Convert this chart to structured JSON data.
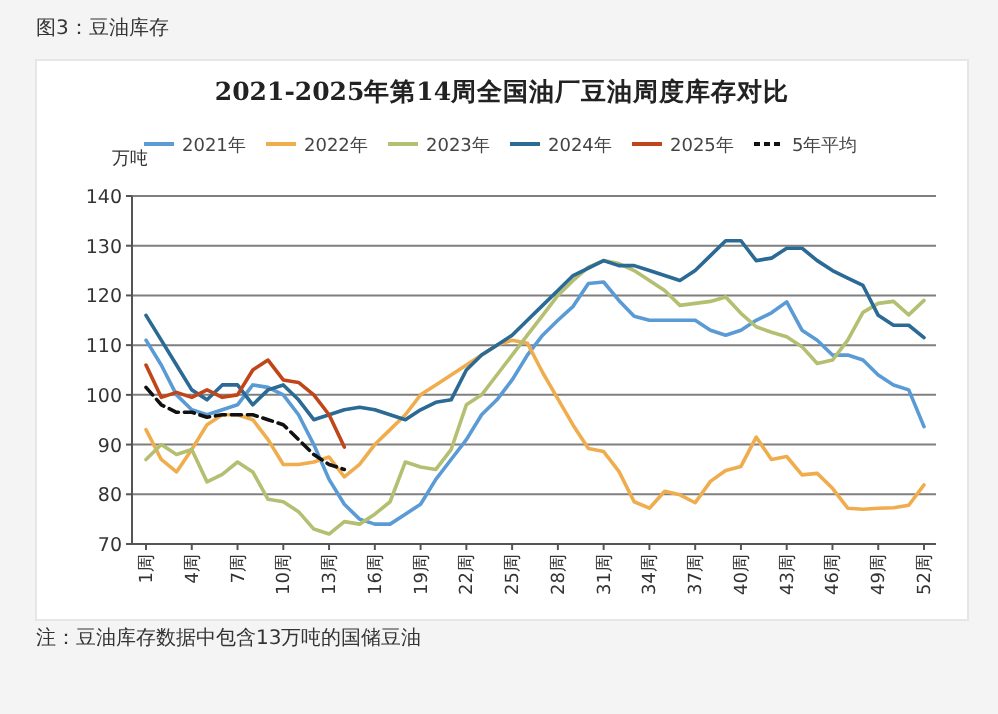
{
  "chart_data": {
    "type": "line",
    "title": "2021-2025年第14周全国油厂豆油周度库存对比",
    "ylabel": "万吨",
    "annotations": [
      "图3：豆油库存",
      "注：豆油库存数据中包含13万吨的国储豆油"
    ],
    "categories": [
      "1周",
      null,
      null,
      "4周",
      null,
      null,
      "7周",
      null,
      null,
      "10周",
      null,
      null,
      "13周",
      null,
      null,
      "16周",
      null,
      null,
      "19周",
      null,
      null,
      "22周",
      null,
      null,
      "25周",
      null,
      null,
      "28周",
      null,
      null,
      "31周",
      null,
      null,
      "34周",
      null,
      null,
      "37周",
      null,
      null,
      "40周",
      null,
      null,
      "43周",
      null,
      null,
      "46周",
      null,
      null,
      "49周",
      null,
      null,
      "52周"
    ],
    "ylim": [
      70,
      140
    ],
    "yticks": [
      70,
      80,
      90,
      100,
      110,
      120,
      130,
      140
    ],
    "grid": "y",
    "legend": "top",
    "series": [
      {
        "name": "2021年",
        "color": "#5b9bd5",
        "values": [
          111,
          106,
          100,
          97,
          96,
          97,
          98,
          102,
          101.5,
          100,
          96,
          90,
          83,
          78,
          75,
          74,
          74,
          76,
          78,
          83,
          87,
          91,
          96,
          99,
          103,
          108,
          112,
          115,
          117.8,
          122.4,
          122.7,
          119,
          115.8,
          115,
          115,
          115,
          115,
          113,
          112,
          113,
          115,
          116.5,
          118.7,
          113,
          111,
          108,
          108,
          107,
          104,
          102,
          101,
          93.6
        ]
      },
      {
        "name": "2022年",
        "color": "#f0ad4e",
        "values": [
          93,
          87,
          84.5,
          89,
          94,
          96,
          96,
          95,
          91,
          86,
          86,
          86.5,
          87.5,
          83.5,
          86,
          90,
          93,
          96,
          100,
          102,
          104,
          106,
          108,
          110,
          111,
          110.4,
          104.5,
          99.2,
          93.9,
          89.2,
          88.6,
          84.6,
          78.5,
          77.2,
          80.6,
          79.9,
          78.3,
          82.6,
          84.8,
          85.6,
          91.5,
          87,
          87.6,
          83.9,
          84.2,
          81.2,
          77.2,
          77,
          77.2,
          77.3,
          77.8,
          81.9
        ]
      },
      {
        "name": "2023年",
        "color": "#b4bf72",
        "values": [
          87,
          90,
          88,
          89,
          82.5,
          84,
          86.5,
          84.5,
          79,
          78.5,
          76.5,
          73,
          72,
          74.5,
          74,
          76,
          78.5,
          86.5,
          85.5,
          85,
          89,
          98,
          100,
          104,
          108,
          112,
          116,
          120,
          123,
          125.7,
          127,
          126.4,
          125,
          123,
          121,
          118,
          118.4,
          118.8,
          119.7,
          116.4,
          113.7,
          112.6,
          111.7,
          109.7,
          106.3,
          107,
          111,
          116.6,
          118.4,
          118.8,
          116.1,
          119
        ]
      },
      {
        "name": "2024年",
        "color": "#2a6a94",
        "values": [
          116,
          111,
          106,
          101,
          99,
          102,
          102,
          98,
          101,
          102,
          99,
          95,
          96,
          97,
          97.5,
          97,
          96,
          95,
          97,
          98.5,
          99,
          105,
          108,
          110,
          112,
          115,
          118,
          121,
          124,
          125.5,
          127,
          126,
          126,
          125,
          124,
          123,
          125,
          128,
          131,
          131,
          127,
          127.5,
          129.5,
          129.5,
          127,
          125,
          123.5,
          122,
          116,
          114,
          114,
          111.5
        ]
      },
      {
        "name": "2025年",
        "color": "#c0461a",
        "values": [
          106,
          99.5,
          100.5,
          99.5,
          101,
          99.5,
          100,
          105,
          107,
          103,
          102.5,
          100,
          96,
          89.5,
          null,
          null,
          null,
          null,
          null,
          null,
          null,
          null,
          null,
          null,
          null,
          null,
          null,
          null,
          null,
          null,
          null,
          null,
          null,
          null,
          null,
          null,
          null,
          null,
          null,
          null,
          null,
          null,
          null,
          null,
          null,
          null,
          null,
          null,
          null,
          null,
          null,
          null
        ]
      },
      {
        "name": "5年平均",
        "color": "#111111",
        "line_style": "dashed",
        "values": [
          101.5,
          98,
          96.5,
          96.5,
          95.5,
          96,
          96,
          96,
          95,
          94,
          91,
          88,
          86,
          85,
          null,
          null,
          null,
          null,
          null,
          null,
          null,
          null,
          null,
          null,
          null,
          null,
          null,
          null,
          null,
          null,
          null,
          null,
          null,
          null,
          null,
          null,
          null,
          null,
          null,
          null,
          null,
          null,
          null,
          null,
          null,
          null,
          null,
          null,
          null,
          null,
          null,
          null
        ]
      }
    ]
  }
}
